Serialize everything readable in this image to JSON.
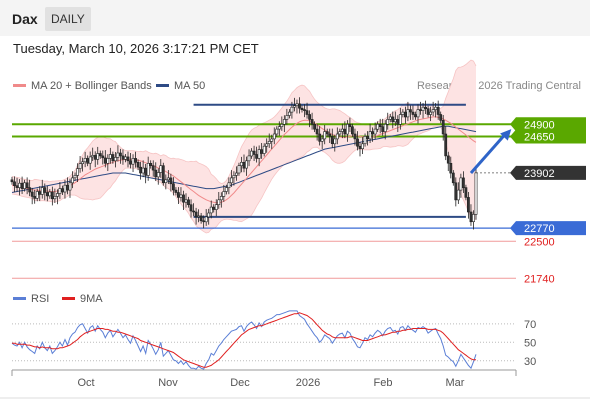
{
  "header": {
    "symbol": "Dax",
    "period": "DAILY",
    "timestamp": "Tuesday, March 10, 2026 3:17:21 PM CET"
  },
  "legend_main": {
    "bollinger": "MA 20 + Bollinger Bands",
    "ma50": "MA 50",
    "credit": "Research © 2026 Trading Central"
  },
  "legend_rsi": {
    "rsi": "RSI",
    "ma9": "9MA"
  },
  "colors": {
    "bollinger": "#f08a8a",
    "band_fill": "#fde3e3",
    "ma50": "#2e4b85",
    "resistance": "#5aa800",
    "support": "#3a6bd6",
    "secondary": "#e02020",
    "current": "#333333",
    "up_candle": "#ffffff",
    "down_candle": "#333333"
  },
  "chart_data": [
    {
      "type": "candlestick",
      "title": "Dax",
      "x_labels": [
        "Oct",
        "Nov",
        "Dec",
        "2026",
        "Feb",
        "Mar"
      ],
      "ylim": [
        21500,
        25500
      ],
      "current_price": 23902,
      "levels": [
        {
          "value": 24900,
          "label": "24900",
          "kind": "resistance"
        },
        {
          "value": 24650,
          "label": "24650",
          "kind": "resistance"
        },
        {
          "value": 23902,
          "label": "23902",
          "kind": "current"
        },
        {
          "value": 22770,
          "label": "22770",
          "kind": "support"
        },
        {
          "value": 22500,
          "label": "22500",
          "kind": "secondary"
        },
        {
          "value": 21740,
          "label": "21740",
          "kind": "secondary"
        }
      ],
      "range_lines": [
        {
          "value": 25300,
          "from_index": 72,
          "to_index": 180
        },
        {
          "value": 23000,
          "from_index": 72,
          "to_index": 180
        }
      ],
      "forecast_arrow": {
        "from_index": 182,
        "from_value": 23900,
        "to_index": 198,
        "to_value": 24800
      },
      "close": [
        23720,
        23640,
        23600,
        23690,
        23580,
        23700,
        23600,
        23510,
        23420,
        23380,
        23520,
        23460,
        23600,
        23500,
        23430,
        23510,
        23370,
        23420,
        23480,
        23580,
        23510,
        23650,
        23550,
        23700,
        23800,
        23850,
        23990,
        24090,
        24130,
        24200,
        24100,
        24230,
        24260,
        24180,
        24300,
        24250,
        24210,
        24100,
        24200,
        24280,
        24150,
        24220,
        24310,
        24250,
        24180,
        24230,
        24150,
        24080,
        24200,
        24120,
        24020,
        23900,
        24000,
        23850,
        24100,
        24050,
        23960,
        23820,
        23910,
        24050,
        23700,
        23760,
        23800,
        23680,
        23550,
        23500,
        23400,
        23450,
        23300,
        23350,
        23250,
        23120,
        23100,
        23000,
        23020,
        22920,
        22900,
        23000,
        23080,
        23200,
        23150,
        23250,
        23350,
        23420,
        23520,
        23600,
        23700,
        23800,
        23850,
        23900,
        24050,
        24120,
        24000,
        24150,
        24250,
        24350,
        24280,
        24200,
        24380,
        24300,
        24450,
        24500,
        24550,
        24600,
        24700,
        24800,
        24850,
        24900,
        25000,
        25080,
        25150,
        25250,
        25280,
        25320,
        25230,
        25200,
        25180,
        25100,
        25000,
        24900,
        24800,
        24700,
        24550,
        24600,
        24750,
        24700,
        24650,
        24500,
        24600,
        24700,
        24750,
        24800,
        24700,
        24900,
        24850,
        24700,
        24600,
        24450,
        24400,
        24500,
        24650,
        24600,
        24750,
        24700,
        24800,
        24900,
        24850,
        24750,
        24900,
        25000,
        25050,
        24950,
        25000,
        24900,
        25100,
        25150,
        25050,
        25200,
        25150,
        25100,
        25050,
        25200,
        25180,
        25250,
        25220,
        25100,
        25150,
        25200,
        25250,
        25100,
        24980,
        24700,
        24250,
        24100,
        23900,
        23700,
        23350,
        23550,
        23800,
        23600,
        23400,
        23100,
        22900,
        23050,
        23902
      ],
      "ma20": [
        23650,
        23640,
        23630,
        23620,
        23600,
        23590,
        23580,
        23570,
        23560,
        23550,
        23550,
        23540,
        23540,
        23530,
        23530,
        23520,
        23520,
        23520,
        23530,
        23540,
        23560,
        23580,
        23610,
        23640,
        23670,
        23700,
        23740,
        23780,
        23820,
        23860,
        23890,
        23920,
        23950,
        23980,
        24000,
        24020,
        24040,
        24060,
        24080,
        24100,
        24120,
        24140,
        24150,
        24160,
        24170,
        24180,
        24180,
        24180,
        24180,
        24170,
        24160,
        24150,
        24130,
        24110,
        24090,
        24070,
        24050,
        24030,
        24000,
        23980,
        23960,
        23930,
        23900,
        23870,
        23840,
        23800,
        23760,
        23720,
        23680,
        23640,
        23600,
        23560,
        23520,
        23480,
        23440,
        23410,
        23380,
        23350,
        23330,
        23310,
        23300,
        23290,
        23290,
        23300,
        23320,
        23350,
        23390,
        23440,
        23490,
        23550,
        23610,
        23670,
        23730,
        23790,
        23850,
        23910,
        23970,
        24030,
        24090,
        24150,
        24210,
        24270,
        24330,
        24390,
        24450,
        24510,
        24570,
        24630,
        24690,
        24740,
        24790,
        24840,
        24880,
        24920,
        24950,
        24970,
        24980,
        24980,
        24970,
        24950,
        24920,
        24890,
        24850,
        24810,
        24780,
        24750,
        24720,
        24690,
        24670,
        24650,
        24640,
        24630,
        24630,
        24640,
        24650,
        24660,
        24660,
        24660,
        24650,
        24640,
        24630,
        24630,
        24630,
        24640,
        24650,
        24670,
        24690,
        24710,
        24730,
        24750,
        24770,
        24790,
        24810,
        24830,
        24850,
        24870,
        24890,
        24910,
        24930,
        24950,
        24970,
        24990,
        25000,
        25010,
        25020,
        25030,
        25040,
        25050,
        25050,
        25040,
        25030,
        25010,
        24980,
        24950,
        24920,
        24880,
        24840,
        24800,
        24760,
        24720,
        24680,
        24640,
        24600,
        24560,
        24530
      ],
      "ma50": [
        23500,
        23510,
        23520,
        23530,
        23540,
        23550,
        23560,
        23570,
        23580,
        23590,
        23600,
        23610,
        23620,
        23630,
        23640,
        23650,
        23660,
        23670,
        23680,
        23690,
        23700,
        23710,
        23720,
        23730,
        23740,
        23750,
        23760,
        23770,
        23780,
        23790,
        23800,
        23810,
        23820,
        23830,
        23840,
        23850,
        23860,
        23870,
        23880,
        23890,
        23900,
        23900,
        23900,
        23900,
        23900,
        23900,
        23890,
        23880,
        23870,
        23860,
        23850,
        23840,
        23830,
        23820,
        23810,
        23800,
        23790,
        23780,
        23770,
        23760,
        23750,
        23740,
        23730,
        23720,
        23710,
        23700,
        23690,
        23680,
        23670,
        23660,
        23650,
        23640,
        23630,
        23620,
        23610,
        23600,
        23590,
        23580,
        23580,
        23580,
        23580,
        23590,
        23600,
        23610,
        23620,
        23630,
        23640,
        23650,
        23670,
        23690,
        23710,
        23730,
        23750,
        23770,
        23790,
        23810,
        23830,
        23850,
        23870,
        23890,
        23910,
        23930,
        23950,
        23970,
        23990,
        24010,
        24030,
        24050,
        24070,
        24090,
        24110,
        24130,
        24150,
        24170,
        24190,
        24210,
        24230,
        24250,
        24270,
        24290,
        24310,
        24330,
        24350,
        24370,
        24390,
        24400,
        24410,
        24420,
        24430,
        24440,
        24450,
        24460,
        24470,
        24480,
        24490,
        24500,
        24510,
        24520,
        24530,
        24540,
        24550,
        24560,
        24570,
        24580,
        24590,
        24600,
        24610,
        24620,
        24630,
        24640,
        24650,
        24660,
        24670,
        24680,
        24690,
        24700,
        24710,
        24720,
        24730,
        24740,
        24750,
        24760,
        24770,
        24780,
        24790,
        24800,
        24810,
        24820,
        24830,
        24840,
        24850,
        24860,
        24860,
        24860,
        24850,
        24840,
        24830,
        24820,
        24810,
        24800,
        24790,
        24780,
        24770,
        24760,
        24750
      ]
    },
    {
      "type": "line",
      "title": "RSI",
      "x_labels": [
        "Oct",
        "Nov",
        "Dec",
        "2026",
        "Feb",
        "Mar"
      ],
      "ylim": [
        20,
        85
      ],
      "ticks": [
        70,
        50,
        30
      ],
      "series": [
        {
          "name": "RSI",
          "values": [
            49,
            47,
            46,
            50,
            44,
            50,
            45,
            42,
            40,
            38,
            46,
            43,
            50,
            44,
            41,
            46,
            38,
            41,
            45,
            50,
            46,
            53,
            47,
            55,
            59,
            61,
            66,
            69,
            70,
            65,
            60,
            66,
            68,
            62,
            68,
            64,
            61,
            55,
            60,
            63,
            56,
            60,
            64,
            60,
            55,
            58,
            53,
            49,
            57,
            52,
            46,
            40,
            46,
            38,
            52,
            48,
            43,
            37,
            42,
            50,
            35,
            38,
            41,
            36,
            31,
            30,
            27,
            30,
            26,
            29,
            25,
            22,
            22,
            21,
            24,
            22,
            21,
            27,
            31,
            38,
            36,
            41,
            46,
            49,
            53,
            56,
            59,
            62,
            63,
            64,
            67,
            68,
            62,
            67,
            70,
            72,
            69,
            65,
            71,
            67,
            72,
            74,
            75,
            76,
            78,
            80,
            80,
            81,
            82,
            83,
            84,
            84,
            84,
            84,
            79,
            77,
            75,
            70,
            66,
            62,
            58,
            55,
            50,
            53,
            58,
            56,
            54,
            49,
            53,
            57,
            59,
            60,
            55,
            62,
            60,
            54,
            50,
            45,
            44,
            49,
            55,
            53,
            58,
            56,
            60,
            63,
            61,
            57,
            62,
            65,
            66,
            62,
            63,
            59,
            66,
            67,
            63,
            68,
            65,
            63,
            61,
            66,
            65,
            67,
            65,
            60,
            62,
            64,
            65,
            59,
            54,
            46,
            36,
            34,
            31,
            29,
            24,
            30,
            37,
            33,
            29,
            25,
            22,
            29,
            37
          ]
        },
        {
          "name": "9MA",
          "values": [
            49,
            49,
            48,
            48,
            48,
            48,
            47,
            47,
            46,
            45,
            45,
            44,
            45,
            44,
            44,
            44,
            43,
            43,
            43,
            44,
            44,
            45,
            46,
            47,
            49,
            51,
            53,
            56,
            58,
            60,
            61,
            62,
            63,
            64,
            65,
            65,
            65,
            64,
            64,
            63,
            62,
            62,
            61,
            61,
            60,
            59,
            58,
            57,
            56,
            55,
            54,
            52,
            51,
            50,
            49,
            48,
            47,
            46,
            45,
            44,
            43,
            42,
            41,
            40,
            39,
            37,
            35,
            33,
            31,
            30,
            29,
            28,
            27,
            26,
            25,
            24,
            23,
            23,
            24,
            25,
            27,
            29,
            31,
            34,
            37,
            40,
            43,
            46,
            49,
            52,
            55,
            58,
            60,
            62,
            64,
            65,
            66,
            67,
            68,
            68,
            69,
            70,
            71,
            72,
            73,
            74,
            75,
            76,
            77,
            78,
            79,
            80,
            81,
            81,
            82,
            81,
            80,
            79,
            77,
            75,
            72,
            69,
            66,
            63,
            61,
            59,
            58,
            56,
            55,
            55,
            55,
            55,
            55,
            55,
            56,
            56,
            55,
            54,
            53,
            52,
            52,
            52,
            53,
            54,
            55,
            56,
            57,
            58,
            58,
            59,
            60,
            61,
            61,
            62,
            62,
            63,
            63,
            64,
            64,
            65,
            65,
            65,
            65,
            65,
            65,
            64,
            64,
            64,
            64,
            63,
            62,
            60,
            57,
            54,
            51,
            48,
            45,
            42,
            40,
            38,
            36,
            34,
            32,
            31,
            31
          ]
        }
      ]
    }
  ]
}
